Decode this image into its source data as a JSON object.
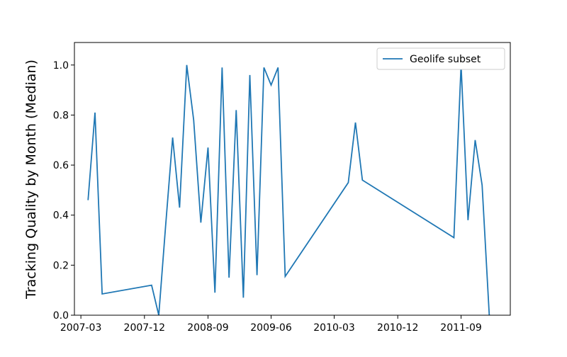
{
  "chart_data": {
    "type": "line",
    "ylabel": "Tracking Quality by Month (Median)",
    "x": [
      "2007-04",
      "2007-05",
      "2007-06",
      "2008-01",
      "2008-02",
      "2008-03",
      "2008-04",
      "2008-05",
      "2008-06",
      "2008-07",
      "2008-08",
      "2008-09",
      "2008-10",
      "2008-11",
      "2008-12",
      "2009-01",
      "2009-02",
      "2009-03",
      "2009-04",
      "2009-05",
      "2009-06",
      "2009-07",
      "2009-08",
      "2010-05",
      "2010-06",
      "2010-07",
      "2011-08",
      "2011-09",
      "2011-10",
      "2011-11",
      "2011-12",
      "2012-01"
    ],
    "series": [
      {
        "name": "Geolife subset",
        "color": "#1f77b4",
        "values": [
          0.46,
          0.81,
          0.085,
          0.12,
          0.0,
          0.35,
          0.71,
          0.43,
          1.0,
          0.78,
          0.37,
          0.67,
          0.09,
          0.99,
          0.15,
          0.82,
          0.07,
          0.96,
          0.16,
          0.99,
          0.92,
          0.99,
          0.155,
          0.53,
          0.77,
          0.54,
          0.31,
          1.0,
          0.38,
          0.7,
          0.52,
          0.0
        ]
      }
    ],
    "xlim": [
      "2007-02",
      "2012-04"
    ],
    "xticks": [
      "2007-03",
      "2007-12",
      "2008-09",
      "2009-06",
      "2010-03",
      "2010-12",
      "2011-09"
    ],
    "ylim": [
      0,
      1.09
    ],
    "yticks": [
      {
        "value": 0,
        "label": "0.0"
      },
      0.2,
      0.4,
      0.6,
      0.8,
      {
        "value": 1,
        "label": "1.0"
      }
    ],
    "legend": "upper right",
    "grid": false
  }
}
